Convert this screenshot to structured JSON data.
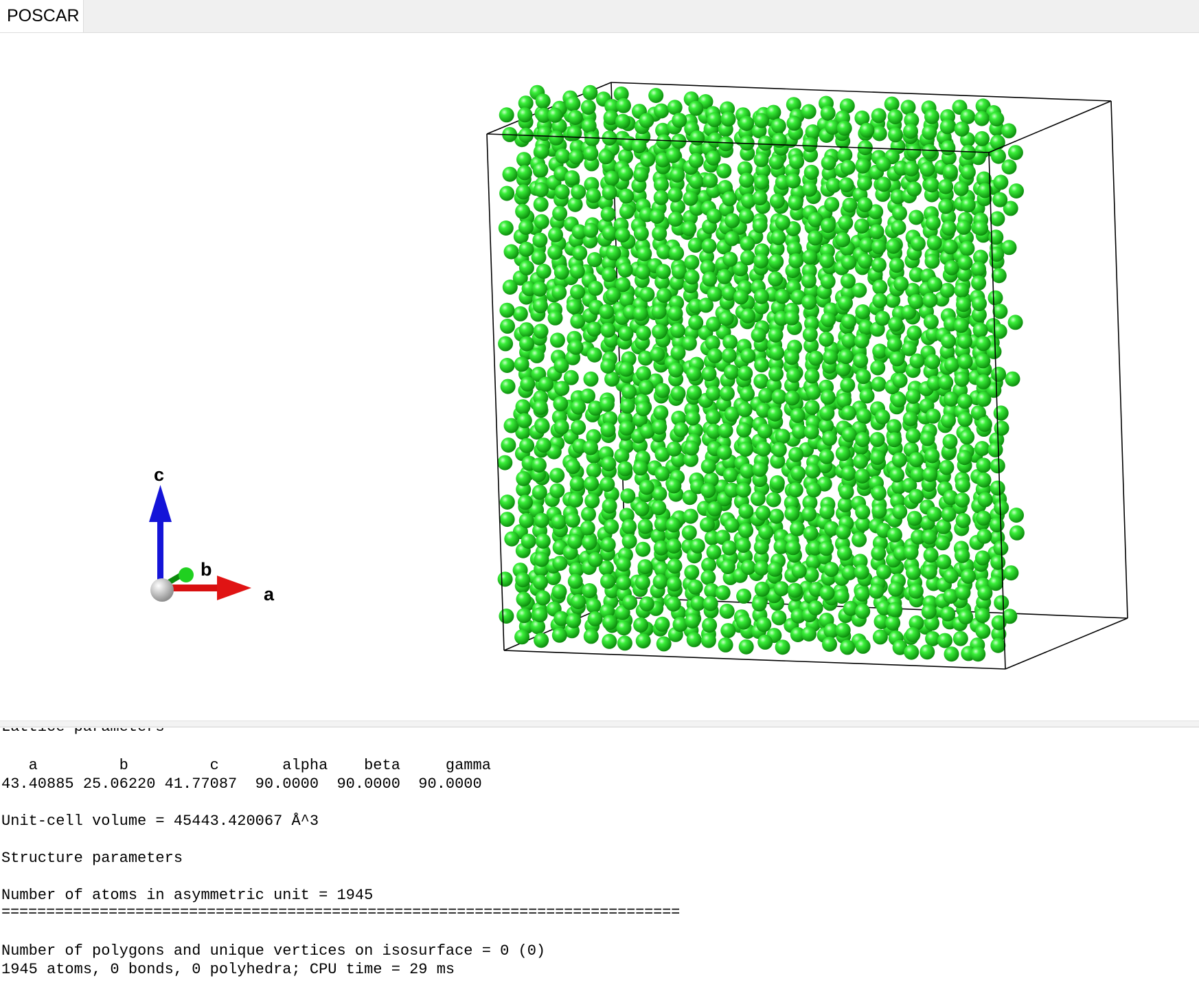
{
  "tab": {
    "title": "POSCAR"
  },
  "colors": {
    "atom": "#20dd20",
    "atom_dark": "#108a10",
    "a_axis": "#e01010",
    "b_axis": "#10a010",
    "c_axis": "#1010e0",
    "origin": "#d8d8d8"
  },
  "axes": {
    "a_label": "a",
    "b_label": "b",
    "c_label": "c"
  },
  "structure": {
    "atom_count": 1945,
    "lattice": {
      "a": 43.40885,
      "b": 25.0622,
      "c": 41.77087,
      "alpha": 90,
      "beta": 90,
      "gamma": 90
    }
  },
  "output": {
    "partial_heading": "Lattice parameters",
    "lattice_header": "   a         b         c       alpha    beta     gamma",
    "lattice_values": "43.40885 25.06220 41.77087  90.0000  90.0000  90.0000",
    "volume": "Unit-cell volume = 45443.420067 Å^3",
    "structure_heading": "Structure parameters",
    "atoms_asym": "Number of atoms in asymmetric unit = 1945",
    "separator": "============================================================================",
    "isosurface": "Number of polygons and unique vertices on isosurface = 0 (0)",
    "summary": "1945 atoms, 0 bonds, 0 polyhedra; CPU time = 29 ms"
  }
}
